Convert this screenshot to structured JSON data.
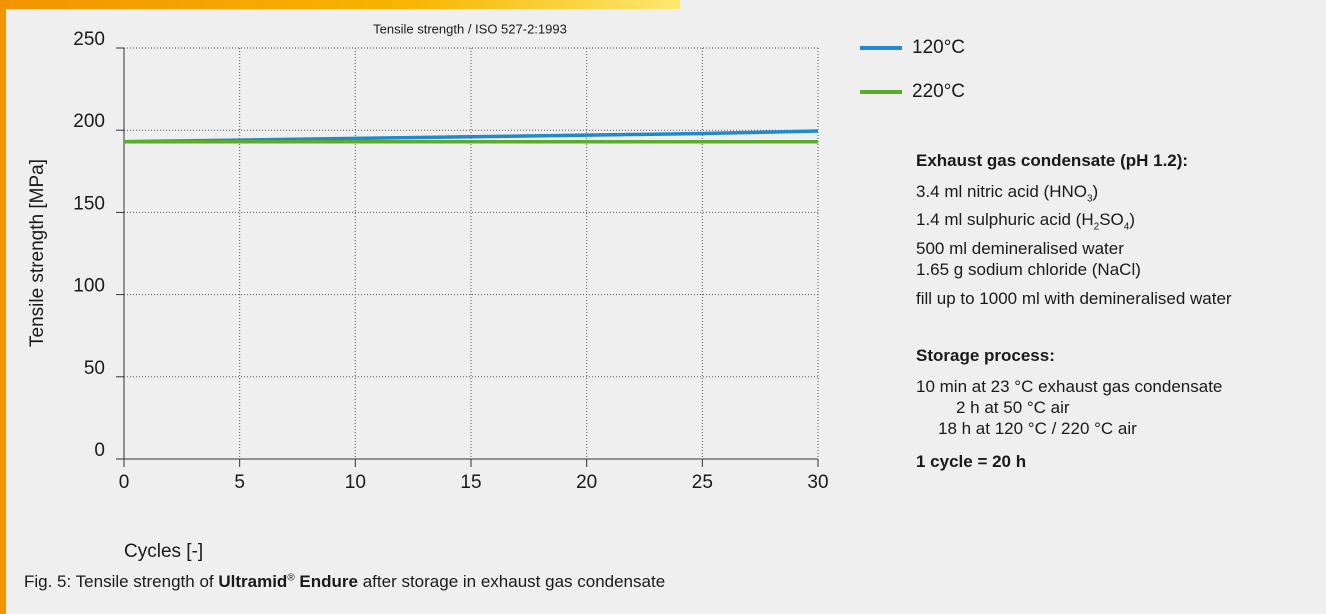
{
  "chart_data": {
    "type": "line",
    "title": "Tensile strength / ISO 527-2:1993",
    "xlabel": "Cycles [-]",
    "ylabel": "Tensile strength [MPa]",
    "x": [
      0,
      5,
      10,
      15,
      20,
      25,
      30
    ],
    "series": [
      {
        "name": "120°C",
        "color": "#1f8ad0",
        "values": [
          193,
          194,
          195,
          196,
          197,
          198,
          199.5
        ]
      },
      {
        "name": "220°C",
        "color": "#5aab2e",
        "values": [
          193,
          193,
          193,
          193,
          193,
          193,
          193
        ]
      }
    ],
    "xlim": [
      0,
      30
    ],
    "ylim": [
      0,
      250
    ],
    "xticks": [
      0,
      5,
      10,
      15,
      20,
      25,
      30
    ],
    "yticks": [
      0,
      50,
      100,
      150,
      200,
      250
    ],
    "grid": true
  },
  "notes": {
    "condensate_heading": "Exhaust gas condensate (pH 1.2):",
    "condensate_lines": [
      [
        "3.4 ml nitric acid (HNO",
        "3",
        ")"
      ],
      [
        "1.4 ml sulphuric acid (H",
        "2",
        "SO",
        "4",
        ")"
      ],
      [
        "500 ml demineralised water"
      ],
      [
        "1.65 g sodium chloride (NaCl)"
      ]
    ],
    "fill_note": "fill up to 1000 ml with demineralised water",
    "storage_heading": "Storage process:",
    "storage_lines": [
      "10 min at 23 °C exhaust gas condensate",
      "2 h at 50 °C air",
      "18 h at 120 °C / 220 °C air"
    ],
    "cycle_note": "1 cycle = 20 h"
  },
  "caption": [
    "Fig. 5: Tensile strength of ",
    "Ultramid",
    "®",
    " Endure",
    " after storage in exhaust gas condensate"
  ]
}
